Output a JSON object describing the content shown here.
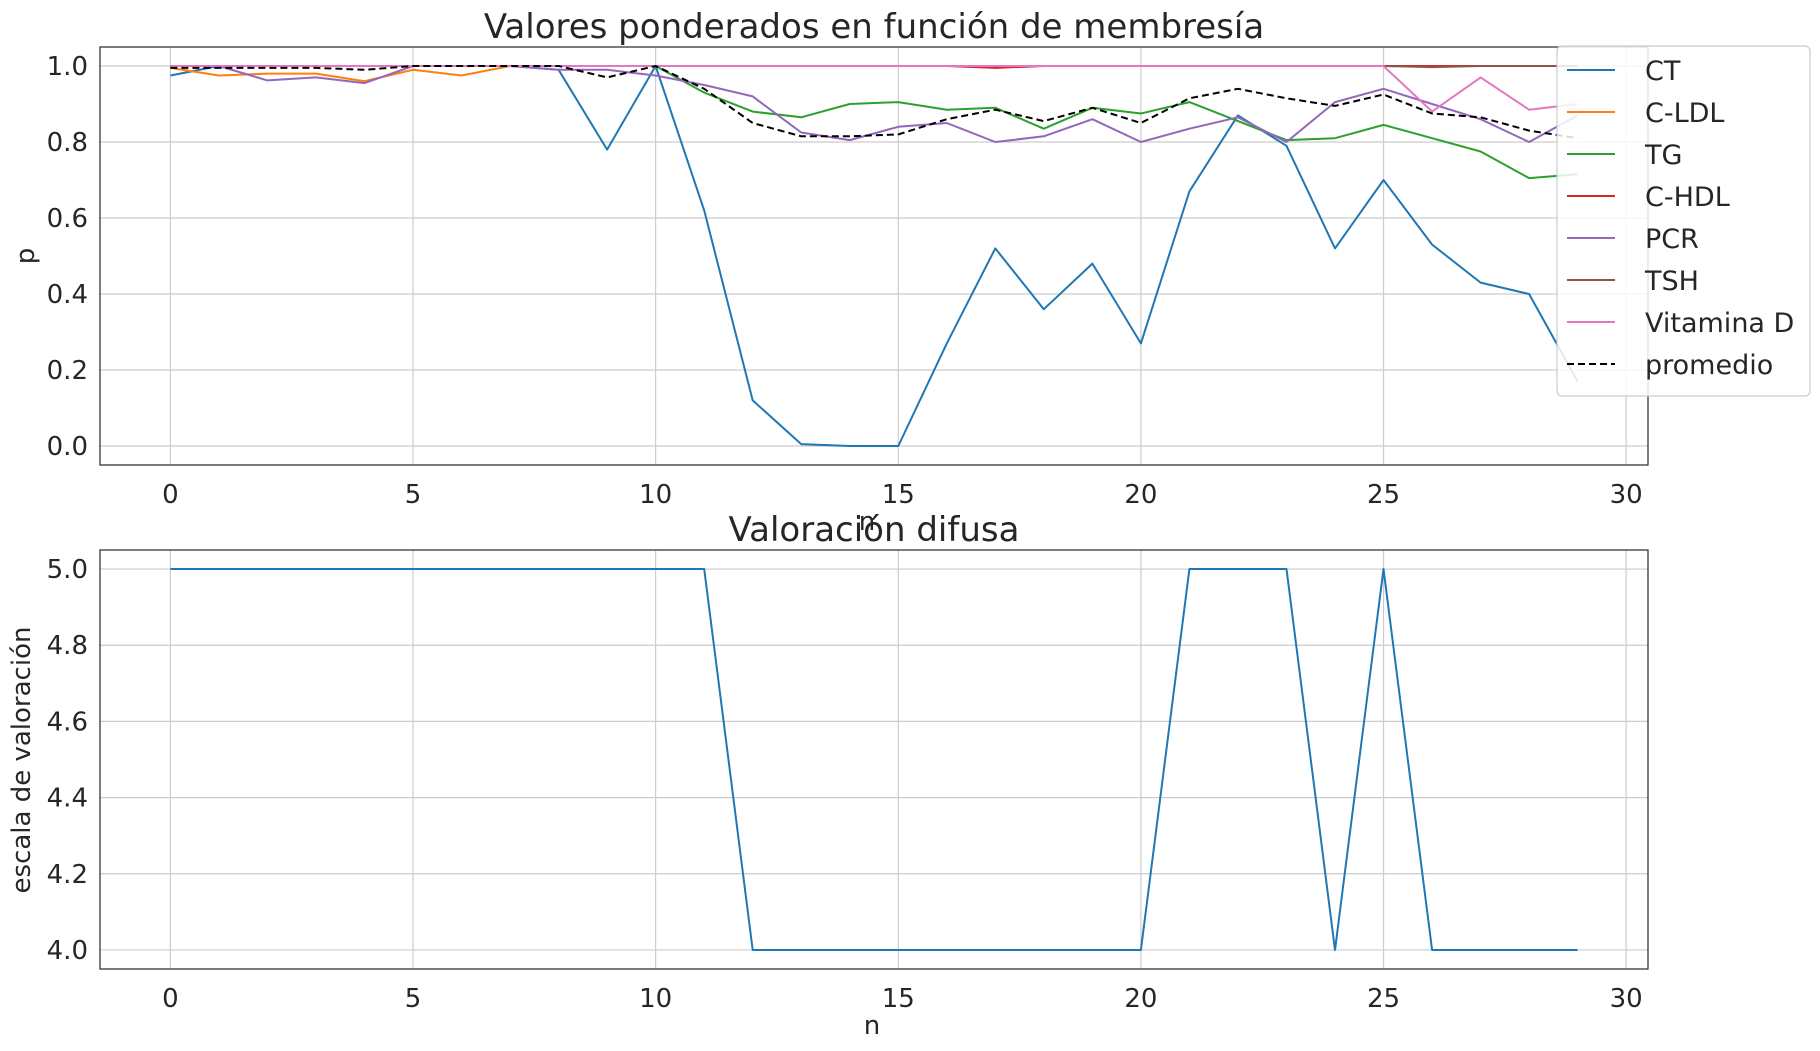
{
  "chart_data": [
    {
      "type": "line",
      "title": "Valores ponderados en función de membresía",
      "xlabel": "n",
      "ylabel": "p",
      "xlim": [
        -1.45,
        30.45
      ],
      "ylim": [
        -0.05,
        1.05
      ],
      "xticks": [
        0,
        5,
        10,
        15,
        20,
        25,
        30
      ],
      "yticks": [
        0.0,
        0.2,
        0.4,
        0.6,
        0.8,
        1.0
      ],
      "grid": true,
      "legend": "upper right, outside",
      "x": [
        0,
        1,
        2,
        3,
        4,
        5,
        6,
        7,
        8,
        9,
        10,
        11,
        12,
        13,
        14,
        15,
        16,
        17,
        18,
        19,
        20,
        21,
        22,
        23,
        24,
        25,
        26,
        27,
        28,
        29
      ],
      "series": [
        {
          "name": "CT",
          "color": "#1f77b4",
          "dash": "solid",
          "values": [
            0.975,
            1.0,
            1.0,
            1.0,
            1.0,
            1.0,
            1.0,
            1.0,
            0.99,
            0.78,
            1.0,
            0.62,
            0.12,
            0.005,
            0.0,
            0.0,
            0.27,
            0.52,
            0.36,
            0.48,
            0.27,
            0.67,
            0.87,
            0.79,
            0.52,
            0.7,
            0.53,
            0.43,
            0.4,
            0.17
          ]
        },
        {
          "name": "C-LDL",
          "color": "#ff7f0e",
          "dash": "solid",
          "values": [
            0.995,
            0.975,
            0.98,
            0.98,
            0.96,
            0.99,
            0.975,
            1.0,
            1.0,
            1.0,
            1.0,
            1.0,
            1.0,
            1.0,
            1.0,
            1.0,
            1.0,
            1.0,
            1.0,
            1.0,
            1.0,
            1.0,
            1.0,
            1.0,
            1.0,
            1.0,
            1.0,
            1.0,
            1.0,
            1.0
          ]
        },
        {
          "name": "TG",
          "color": "#2ca02c",
          "dash": "solid",
          "values": [
            1.0,
            1.0,
            1.0,
            1.0,
            1.0,
            1.0,
            1.0,
            1.0,
            1.0,
            1.0,
            1.0,
            0.93,
            0.88,
            0.865,
            0.9,
            0.905,
            0.885,
            0.89,
            0.835,
            0.89,
            0.875,
            0.905,
            0.855,
            0.805,
            0.81,
            0.845,
            0.81,
            0.775,
            0.705,
            0.715
          ]
        },
        {
          "name": "C-HDL",
          "color": "#d62728",
          "dash": "solid",
          "values": [
            1.0,
            1.0,
            1.0,
            1.0,
            1.0,
            1.0,
            1.0,
            1.0,
            1.0,
            1.0,
            1.0,
            1.0,
            1.0,
            1.0,
            1.0,
            1.0,
            1.0,
            0.995,
            1.0,
            1.0,
            1.0,
            1.0,
            1.0,
            1.0,
            1.0,
            1.0,
            1.0,
            1.0,
            1.0,
            1.0
          ]
        },
        {
          "name": "PCR",
          "color": "#9467bd",
          "dash": "solid",
          "values": [
            1.0,
            1.0,
            0.962,
            0.97,
            0.955,
            1.0,
            1.0,
            1.0,
            0.99,
            0.99,
            0.975,
            0.95,
            0.92,
            0.825,
            0.805,
            0.84,
            0.85,
            0.8,
            0.815,
            0.86,
            0.8,
            0.835,
            0.865,
            0.8,
            0.905,
            0.94,
            0.9,
            0.86,
            0.8,
            0.87
          ]
        },
        {
          "name": "TSH",
          "color": "#8c564b",
          "dash": "solid",
          "values": [
            1.0,
            1.0,
            1.0,
            1.0,
            1.0,
            1.0,
            1.0,
            1.0,
            1.0,
            1.0,
            1.0,
            1.0,
            1.0,
            1.0,
            1.0,
            1.0,
            1.0,
            1.0,
            1.0,
            1.0,
            1.0,
            1.0,
            1.0,
            1.0,
            1.0,
            1.0,
            0.997,
            1.0,
            1.0,
            1.0
          ]
        },
        {
          "name": "Vitamina D",
          "color": "#e377c2",
          "dash": "solid",
          "values": [
            1.0,
            1.0,
            1.0,
            1.0,
            1.0,
            1.0,
            1.0,
            1.0,
            1.0,
            1.0,
            1.0,
            1.0,
            1.0,
            1.0,
            1.0,
            1.0,
            1.0,
            1.0,
            1.0,
            1.0,
            1.0,
            1.0,
            1.0,
            1.0,
            1.0,
            1.0,
            0.88,
            0.97,
            0.885,
            0.9
          ]
        },
        {
          "name": "promedio",
          "color": "#000000",
          "dash": "dashed",
          "values": [
            0.995,
            0.995,
            0.995,
            0.995,
            0.99,
            1.0,
            1.0,
            1.0,
            1.0,
            0.97,
            1.0,
            0.94,
            0.85,
            0.815,
            0.815,
            0.82,
            0.86,
            0.885,
            0.855,
            0.89,
            0.85,
            0.915,
            0.94,
            0.915,
            0.895,
            0.925,
            0.875,
            0.865,
            0.83,
            0.81
          ]
        }
      ]
    },
    {
      "type": "line",
      "title": "Valoración difusa",
      "xlabel": "n",
      "ylabel": "escala de valoración",
      "xlim": [
        -1.45,
        30.45
      ],
      "ylim": [
        3.95,
        5.05
      ],
      "xticks": [
        0,
        5,
        10,
        15,
        20,
        25,
        30
      ],
      "yticks": [
        4.0,
        4.2,
        4.4,
        4.6,
        4.8,
        5.0
      ],
      "grid": true,
      "x": [
        0,
        1,
        2,
        3,
        4,
        5,
        6,
        7,
        8,
        9,
        10,
        11,
        12,
        13,
        14,
        15,
        16,
        17,
        18,
        19,
        20,
        21,
        22,
        23,
        24,
        25,
        26,
        27,
        28,
        29
      ],
      "series": [
        {
          "color": "#1f77b4",
          "dash": "solid",
          "values": [
            5,
            5,
            5,
            5,
            5,
            5,
            5,
            5,
            5,
            5,
            5,
            5,
            4,
            4,
            4,
            4,
            4,
            4,
            4,
            4,
            4,
            5,
            5,
            5,
            4,
            5,
            4,
            4,
            4,
            4
          ]
        }
      ]
    }
  ]
}
